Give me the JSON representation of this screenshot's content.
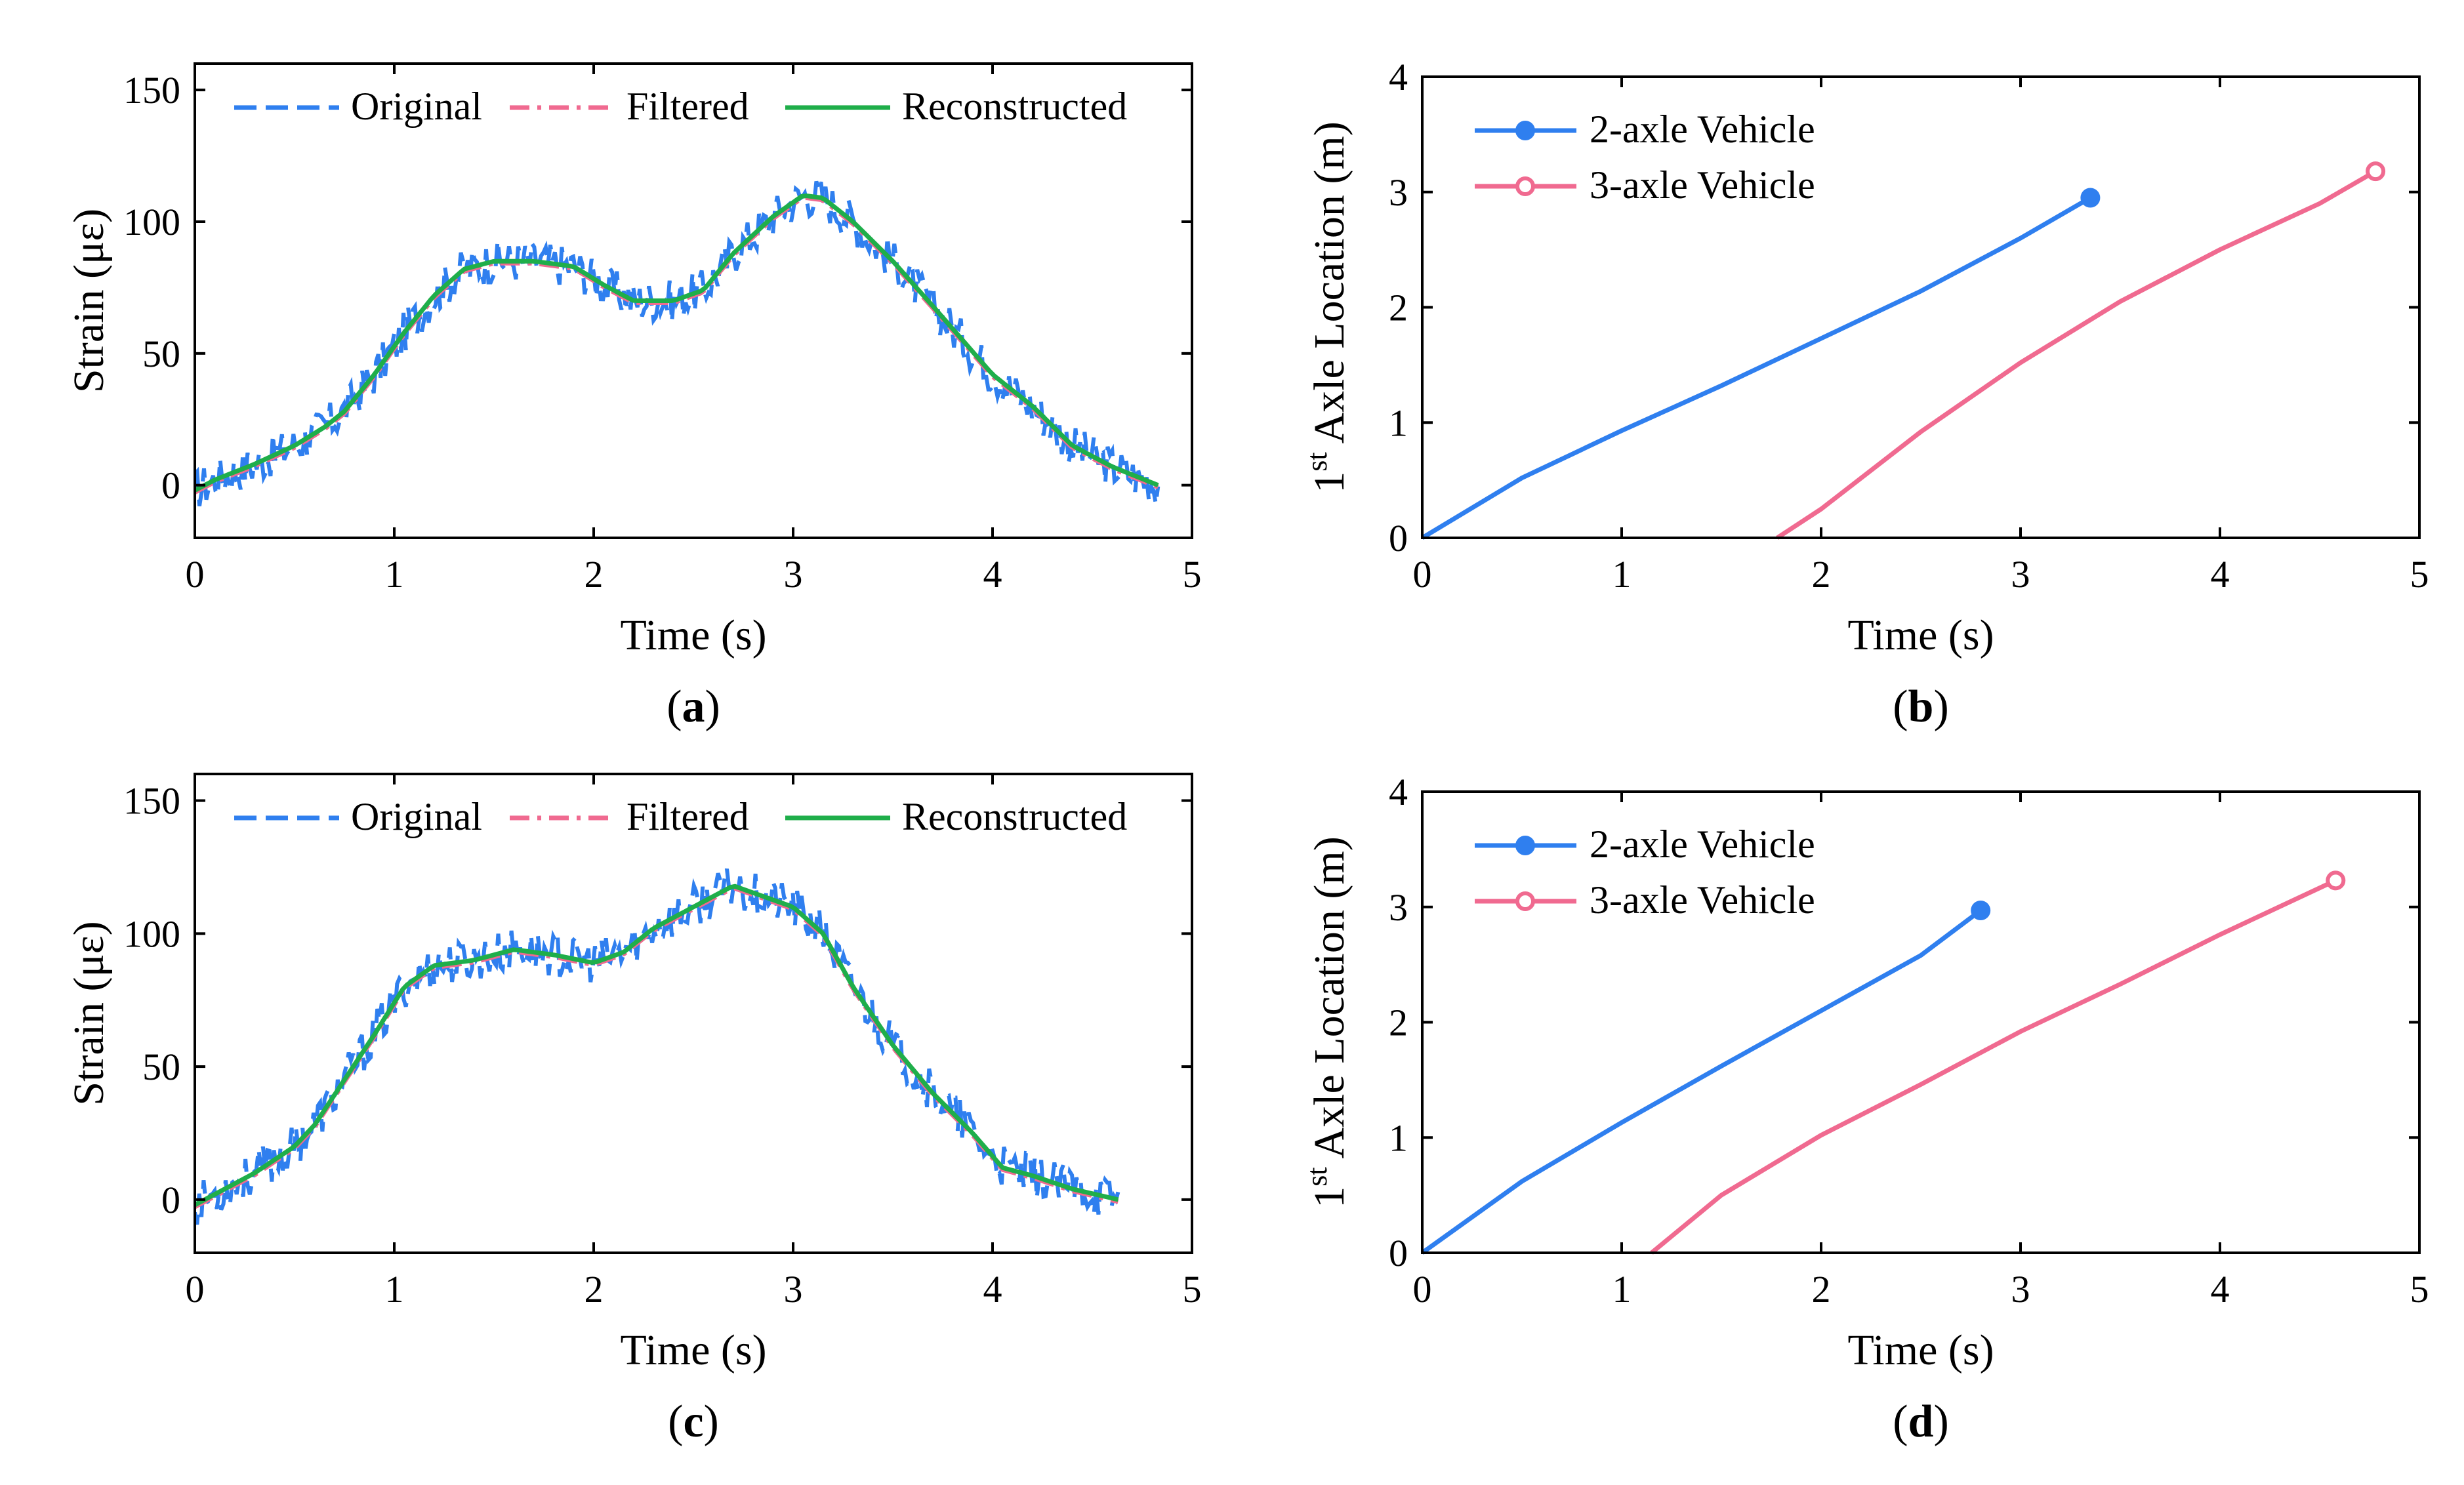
{
  "colors": {
    "original": "#2f7fef",
    "filtered": "#f06a90",
    "reconstructed": "#1fae4a",
    "vehicle2": "#2f7fef",
    "vehicle3": "#f06a90",
    "axis": "#000000"
  },
  "chart_data": [
    {
      "id": "a",
      "type": "line",
      "caption_letter": "a",
      "xlabel": "Time (s)",
      "ylabel": "Strain (με)",
      "xlim": [
        0,
        5
      ],
      "ylim": [
        -20,
        160
      ],
      "xticks": [
        0,
        1,
        2,
        3,
        4,
        5
      ],
      "yticks": [
        0,
        50,
        100,
        150
      ],
      "legend": [
        "Original",
        "Filtered",
        "Reconstructed"
      ],
      "legend_position": "top",
      "t_end": 4.83,
      "smooth": [
        [
          0,
          -2
        ],
        [
          0.1,
          2
        ],
        [
          0.3,
          8
        ],
        [
          0.5,
          15
        ],
        [
          0.65,
          22
        ],
        [
          0.75,
          28
        ],
        [
          0.9,
          42
        ],
        [
          1.05,
          58
        ],
        [
          1.2,
          72
        ],
        [
          1.35,
          82
        ],
        [
          1.5,
          85
        ],
        [
          1.7,
          85
        ],
        [
          1.9,
          83
        ],
        [
          2.05,
          76
        ],
        [
          2.2,
          70
        ],
        [
          2.4,
          70
        ],
        [
          2.55,
          74
        ],
        [
          2.7,
          88
        ],
        [
          2.9,
          102
        ],
        [
          3.05,
          110
        ],
        [
          3.15,
          109
        ],
        [
          3.3,
          100
        ],
        [
          3.5,
          85
        ],
        [
          3.7,
          68
        ],
        [
          3.85,
          55
        ],
        [
          4.0,
          42
        ],
        [
          4.2,
          30
        ],
        [
          4.4,
          15
        ],
        [
          4.6,
          7
        ],
        [
          4.83,
          0
        ]
      ]
    },
    {
      "id": "b",
      "type": "line",
      "caption_letter": "b",
      "xlabel": "Time (s)",
      "ylabel_sup": "st",
      "ylabel_pre": "1",
      "ylabel_main": " Axle Location (m)",
      "xlim": [
        0,
        5
      ],
      "ylim": [
        0,
        4
      ],
      "xticks": [
        0,
        1,
        2,
        3,
        4,
        5
      ],
      "yticks": [
        0,
        1,
        2,
        3,
        4
      ],
      "legend_position": "top-left",
      "series": [
        {
          "name": "2-axle Vehicle",
          "marker": "filled",
          "x": [
            0,
            0.5,
            1.0,
            1.5,
            2.0,
            2.5,
            3.0,
            3.35
          ],
          "y": [
            0,
            0.52,
            0.93,
            1.32,
            1.73,
            2.14,
            2.6,
            2.95
          ]
        },
        {
          "name": "3-axle Vehicle",
          "marker": "open",
          "x": [
            1.78,
            2.0,
            2.5,
            3.0,
            3.5,
            4.0,
            4.5,
            4.78
          ],
          "y": [
            0,
            0.25,
            0.92,
            1.52,
            2.05,
            2.5,
            2.9,
            3.18
          ]
        }
      ]
    },
    {
      "id": "c",
      "type": "line",
      "caption_letter": "c",
      "xlabel": "Time (s)",
      "ylabel": "Strain (με)",
      "xlim": [
        0,
        5
      ],
      "ylim": [
        -20,
        160
      ],
      "xticks": [
        0,
        1,
        2,
        3,
        4,
        5
      ],
      "yticks": [
        0,
        50,
        100,
        150
      ],
      "legend": [
        "Original",
        "Filtered",
        "Reconstructed"
      ],
      "legend_position": "top",
      "t_end": 4.63,
      "smooth": [
        [
          0,
          -2
        ],
        [
          0.1,
          2
        ],
        [
          0.3,
          10
        ],
        [
          0.5,
          20
        ],
        [
          0.6,
          28
        ],
        [
          0.75,
          45
        ],
        [
          0.9,
          62
        ],
        [
          1.05,
          80
        ],
        [
          1.2,
          88
        ],
        [
          1.4,
          90
        ],
        [
          1.6,
          94
        ],
        [
          1.8,
          92
        ],
        [
          2.0,
          89
        ],
        [
          2.15,
          93
        ],
        [
          2.3,
          102
        ],
        [
          2.5,
          110
        ],
        [
          2.7,
          118
        ],
        [
          2.85,
          114
        ],
        [
          3.0,
          110
        ],
        [
          3.15,
          100
        ],
        [
          3.3,
          80
        ],
        [
          3.5,
          58
        ],
        [
          3.7,
          40
        ],
        [
          3.9,
          25
        ],
        [
          4.05,
          12
        ],
        [
          4.2,
          9
        ],
        [
          4.4,
          4
        ],
        [
          4.63,
          0
        ]
      ]
    },
    {
      "id": "d",
      "type": "line",
      "caption_letter": "d",
      "xlabel": "Time (s)",
      "ylabel_sup": "st",
      "ylabel_pre": "1",
      "ylabel_main": " Axle Location (m)",
      "xlim": [
        0,
        5
      ],
      "ylim": [
        0,
        4
      ],
      "xticks": [
        0,
        1,
        2,
        3,
        4,
        5
      ],
      "yticks": [
        0,
        1,
        2,
        3,
        4
      ],
      "legend_position": "top-left",
      "series": [
        {
          "name": "2-axle Vehicle",
          "marker": "filled",
          "x": [
            0,
            0.5,
            1.0,
            1.5,
            2.0,
            2.5,
            2.8
          ],
          "y": [
            0,
            0.62,
            1.13,
            1.62,
            2.1,
            2.58,
            2.97
          ]
        },
        {
          "name": "3-axle Vehicle",
          "marker": "open",
          "x": [
            1.15,
            1.5,
            2.0,
            2.5,
            3.0,
            3.5,
            4.0,
            4.58
          ],
          "y": [
            0,
            0.5,
            1.02,
            1.46,
            1.92,
            2.33,
            2.76,
            3.23
          ]
        }
      ]
    }
  ]
}
